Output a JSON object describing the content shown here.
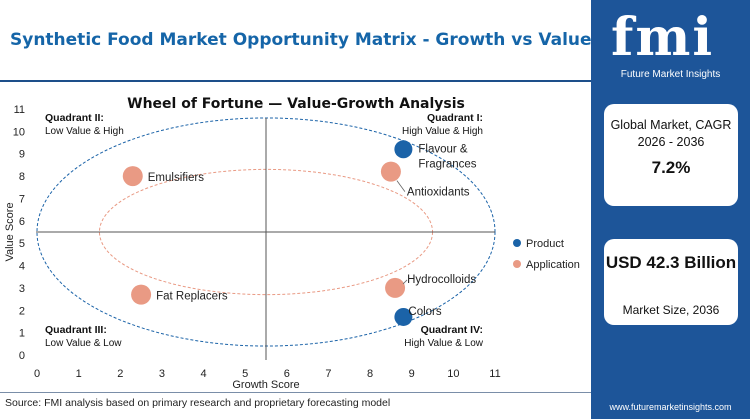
{
  "header": {
    "title": "Synthetic Food Market Opportunity Matrix - Growth vs Value"
  },
  "footer": {
    "source": "Source: FMI analysis based on primary research and proprietary forecasting model"
  },
  "brand": {
    "logo": "fmi",
    "name": "Future Market Insights",
    "website": "www.futuremarketinsights.com"
  },
  "stats": {
    "cagr_label": "Global Market, CAGR 2026 - 2036",
    "cagr_value": "7.2%",
    "size_value": "USD 42.3 Billion",
    "size_label": "Market Size, 2036"
  },
  "colors": {
    "product": "#1b63a8",
    "application": "#e99a84",
    "brand": "#1d5599",
    "title": "#1565a8"
  },
  "chart_data": {
    "type": "scatter",
    "title": "Wheel of Fortune — Value-Growth Analysis",
    "xlabel": "Growth Score",
    "ylabel": "Value Score",
    "xlim": [
      0,
      11
    ],
    "ylim": [
      0,
      11
    ],
    "x_ticks": [
      0,
      1,
      2,
      3,
      4,
      5,
      6,
      7,
      8,
      9,
      10,
      11
    ],
    "y_ticks": [
      0,
      1,
      2,
      3,
      4,
      5,
      6,
      7,
      8,
      9,
      10,
      11
    ],
    "divider": {
      "x": 5.5,
      "y": 5.5
    },
    "grid": false,
    "legend": {
      "placement": "right",
      "entries": [
        "Product",
        "Application"
      ]
    },
    "quadrants": [
      {
        "name": "Quadrant II:",
        "desc": "Low Value & High"
      },
      {
        "name": "Quadrant I:",
        "desc": "High Value & High"
      },
      {
        "name": "Quadrant III:",
        "desc": "Low Value & Low"
      },
      {
        "name": "Quadrant IV:",
        "desc": "High Value & Low"
      }
    ],
    "points": [
      {
        "label": "Flavour & Fragrances",
        "x": 8.8,
        "y": 9.2,
        "series": "Product"
      },
      {
        "label": "Colors",
        "x": 8.8,
        "y": 1.7,
        "series": "Product"
      },
      {
        "label": "Antioxidants",
        "x": 8.5,
        "y": 8.2,
        "series": "Application"
      },
      {
        "label": "Emulsifiers",
        "x": 2.3,
        "y": 8.0,
        "series": "Application"
      },
      {
        "label": "Hydrocolloids",
        "x": 8.6,
        "y": 3.0,
        "series": "Application"
      },
      {
        "label": "Fat Replacers",
        "x": 2.5,
        "y": 2.7,
        "series": "Application"
      }
    ]
  }
}
